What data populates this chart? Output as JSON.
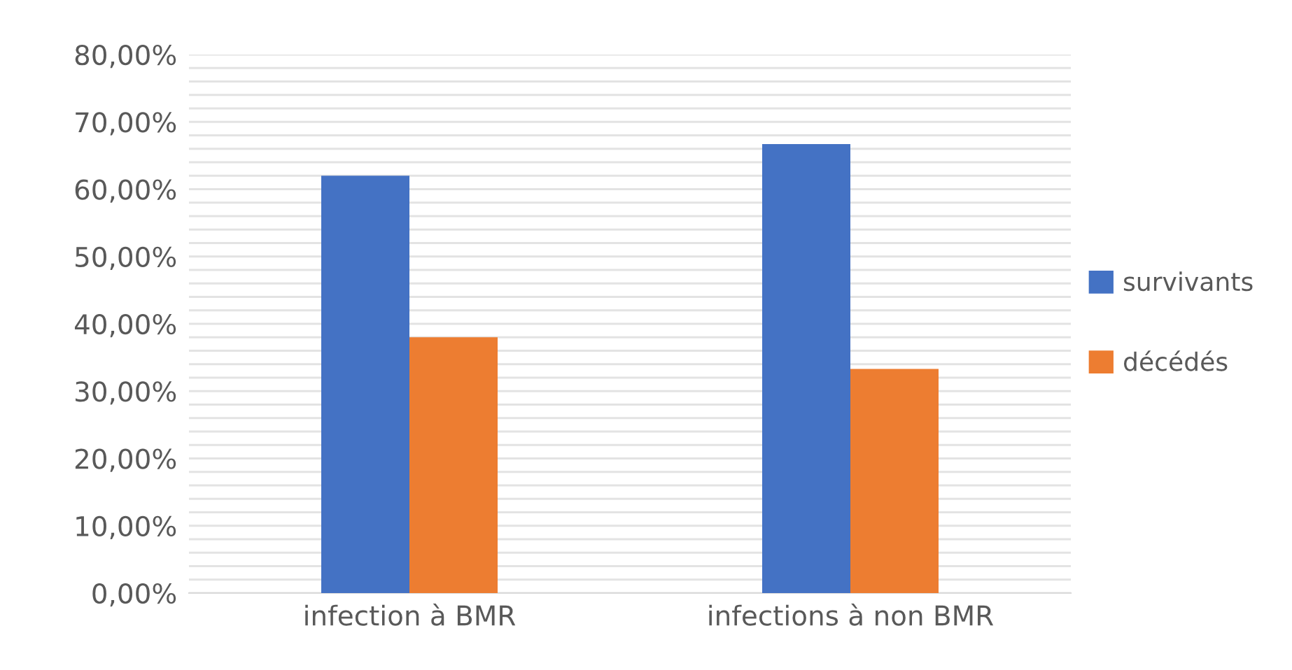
{
  "chart_data": {
    "type": "bar",
    "categories": [
      "infection à BMR",
      "infections à non BMR"
    ],
    "series": [
      {
        "name": "survivants",
        "color": "#4472c4",
        "values": [
          62,
          66.7
        ]
      },
      {
        "name": "décédés",
        "color": "#ed7d31",
        "values": [
          38,
          33.3
        ]
      }
    ],
    "ylim": [
      0,
      80
    ],
    "yticks": [
      {
        "value": 0,
        "label": "0,00%"
      },
      {
        "value": 2,
        "label": null
      },
      {
        "value": 4,
        "label": null
      },
      {
        "value": 6,
        "label": null
      },
      {
        "value": 8,
        "label": null
      },
      {
        "value": 10,
        "label": "10,00%"
      },
      {
        "value": 12,
        "label": null
      },
      {
        "value": 14,
        "label": null
      },
      {
        "value": 16,
        "label": null
      },
      {
        "value": 18,
        "label": null
      },
      {
        "value": 20,
        "label": "20,00%"
      },
      {
        "value": 22,
        "label": null
      },
      {
        "value": 24,
        "label": null
      },
      {
        "value": 26,
        "label": null
      },
      {
        "value": 28,
        "label": null
      },
      {
        "value": 30,
        "label": "30,00%"
      },
      {
        "value": 32,
        "label": null
      },
      {
        "value": 34,
        "label": null
      },
      {
        "value": 36,
        "label": null
      },
      {
        "value": 38,
        "label": null
      },
      {
        "value": 40,
        "label": "40,00%"
      },
      {
        "value": 42,
        "label": null
      },
      {
        "value": 44,
        "label": null
      },
      {
        "value": 46,
        "label": null
      },
      {
        "value": 48,
        "label": null
      },
      {
        "value": 50,
        "label": "50,00%"
      },
      {
        "value": 52,
        "label": null
      },
      {
        "value": 54,
        "label": null
      },
      {
        "value": 56,
        "label": null
      },
      {
        "value": 58,
        "label": null
      },
      {
        "value": 60,
        "label": "60,00%"
      },
      {
        "value": 62,
        "label": null
      },
      {
        "value": 64,
        "label": null
      },
      {
        "value": 66,
        "label": null
      },
      {
        "value": 68,
        "label": null
      },
      {
        "value": 70,
        "label": "70,00%"
      },
      {
        "value": 72,
        "label": null
      },
      {
        "value": 74,
        "label": null
      },
      {
        "value": 76,
        "label": null
      },
      {
        "value": 78,
        "label": null
      },
      {
        "value": 80,
        "label": "80,00%"
      }
    ],
    "grid": "y",
    "legend": "right"
  }
}
